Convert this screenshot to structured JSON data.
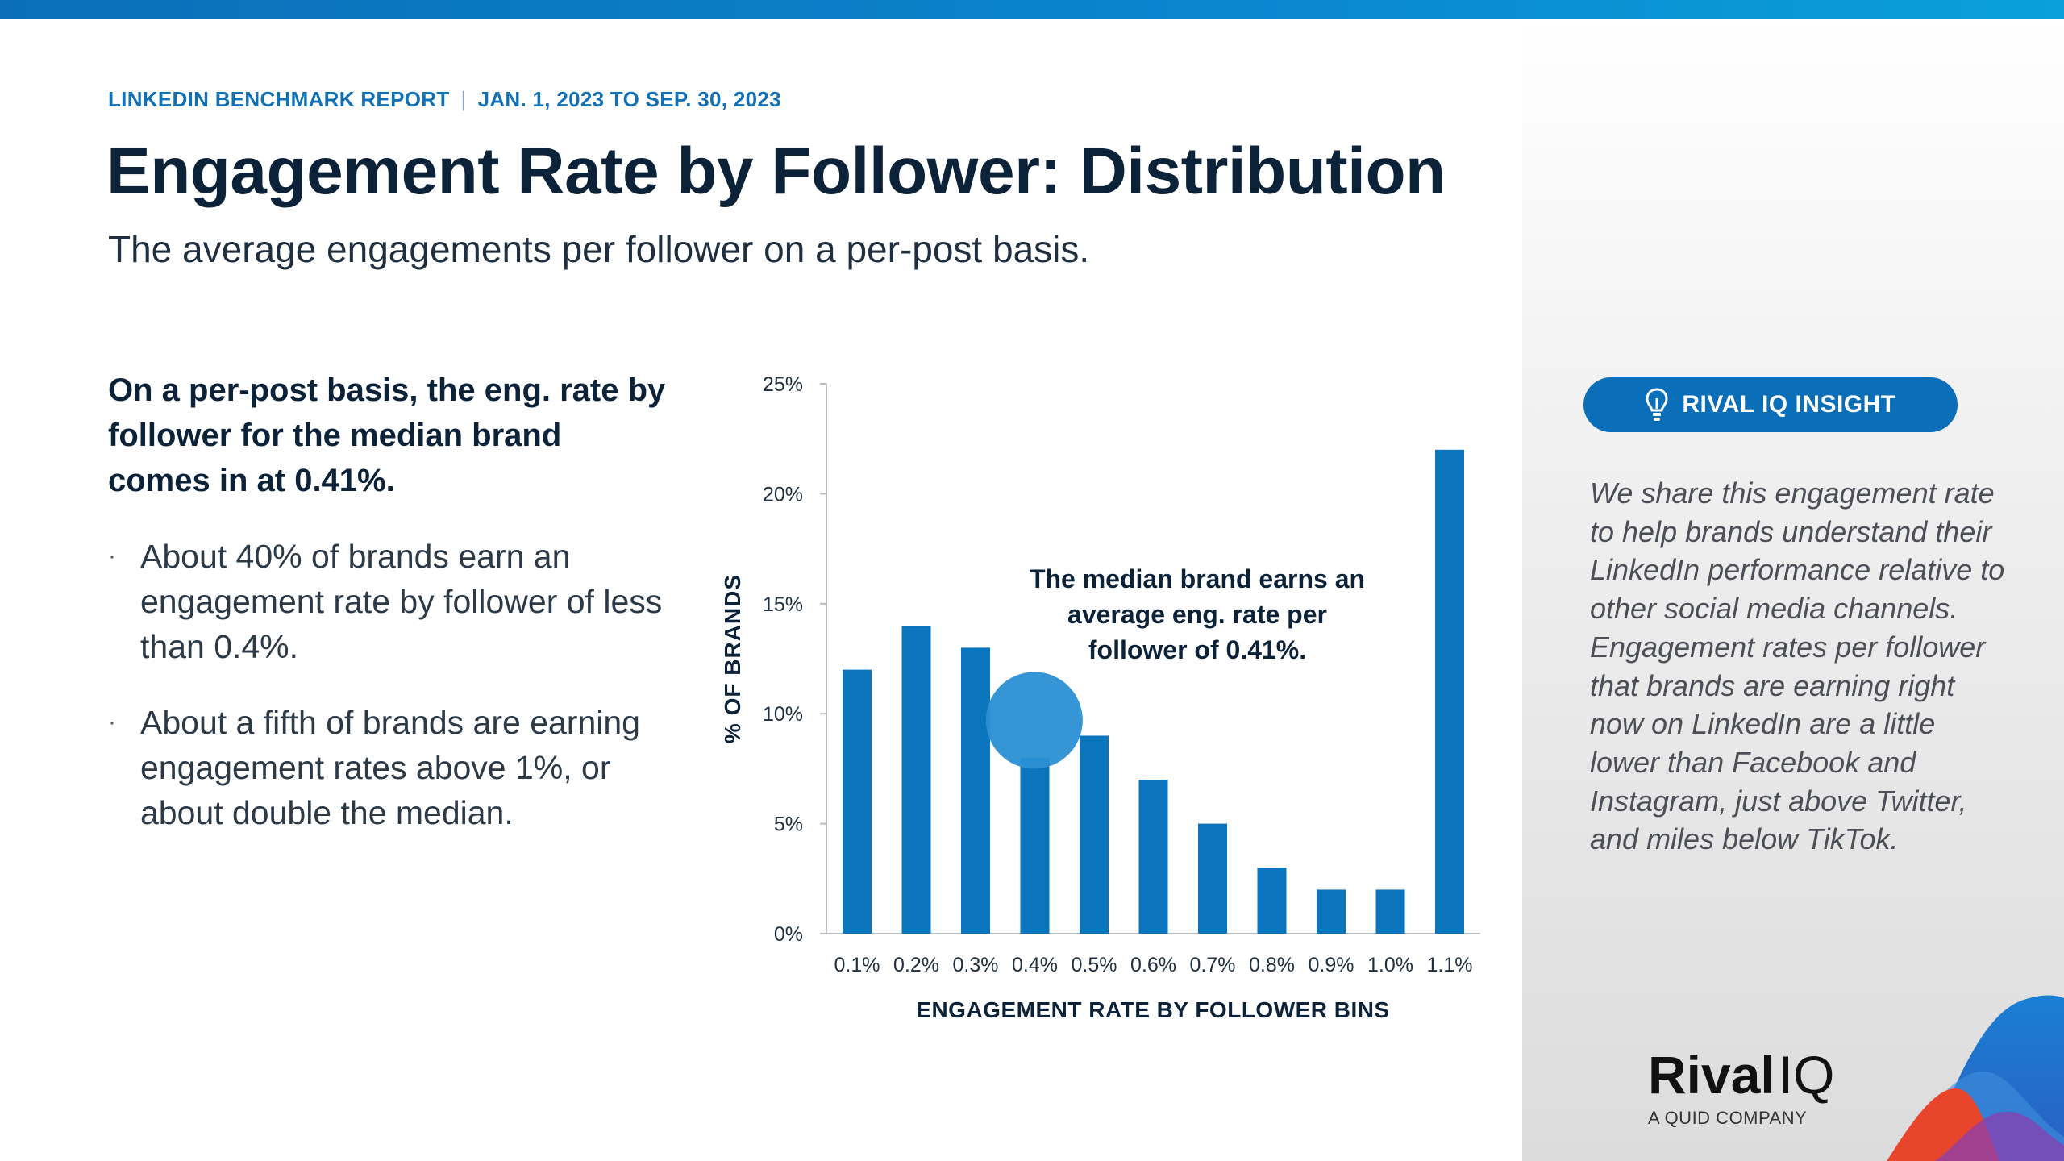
{
  "header": {
    "report_name": "LINKEDIN BENCHMARK REPORT",
    "separator": "|",
    "date_range": "JAN. 1, 2023 TO SEP. 30, 2023",
    "title": "Engagement Rate by Follower: Distribution",
    "subtitle": "The average engagements per follower on a per-post basis."
  },
  "left_panel": {
    "lead": "On a per-post basis, the eng. rate by follower for the median brand comes in at 0.41%.",
    "bullets": [
      "About 40% of brands earn an engagement rate by follower of less than 0.4%.",
      "About a fifth of brands are earning engagement rates above 1%, or about double the median."
    ]
  },
  "chart_data": {
    "type": "bar",
    "title": "",
    "categories": [
      "0.1%",
      "0.2%",
      "0.3%",
      "0.4%",
      "0.5%",
      "0.6%",
      "0.7%",
      "0.8%",
      "0.9%",
      "1.0%",
      "1.1%"
    ],
    "values": [
      12,
      14,
      13,
      8,
      9,
      7,
      5,
      3,
      2,
      2,
      22
    ],
    "xlabel": "ENGAGEMENT RATE BY FOLLOWER BINS",
    "ylabel": "% OF BRANDS",
    "ylim": [
      0,
      25
    ],
    "yticks": [
      0,
      5,
      10,
      15,
      20,
      25
    ],
    "ytick_labels": [
      "0%",
      "5%",
      "10%",
      "15%",
      "20%",
      "25%"
    ],
    "median_marker_value": 0.41,
    "annotation": "The median brand earns an average eng. rate per follower of 0.41%.",
    "bar_color": "#0a74bd",
    "marker_color": "#2b8fd3"
  },
  "insight": {
    "badge_label": "RIVAL IQ INSIGHT",
    "icon": "lightbulb-icon",
    "text": "We share this engagement rate to help brands understand their LinkedIn performance relative to other social media channels. Engagement rates per follower that brands are earning right now on LinkedIn are a little lower than Facebook and Instagram, just above Twitter, and miles below TikTok."
  },
  "brand": {
    "name_bold": "Rival",
    "name_light": "IQ",
    "tagline": "A QUID COMPANY"
  },
  "colors": {
    "accent": "#0a6fb8",
    "title": "#0b2238"
  }
}
